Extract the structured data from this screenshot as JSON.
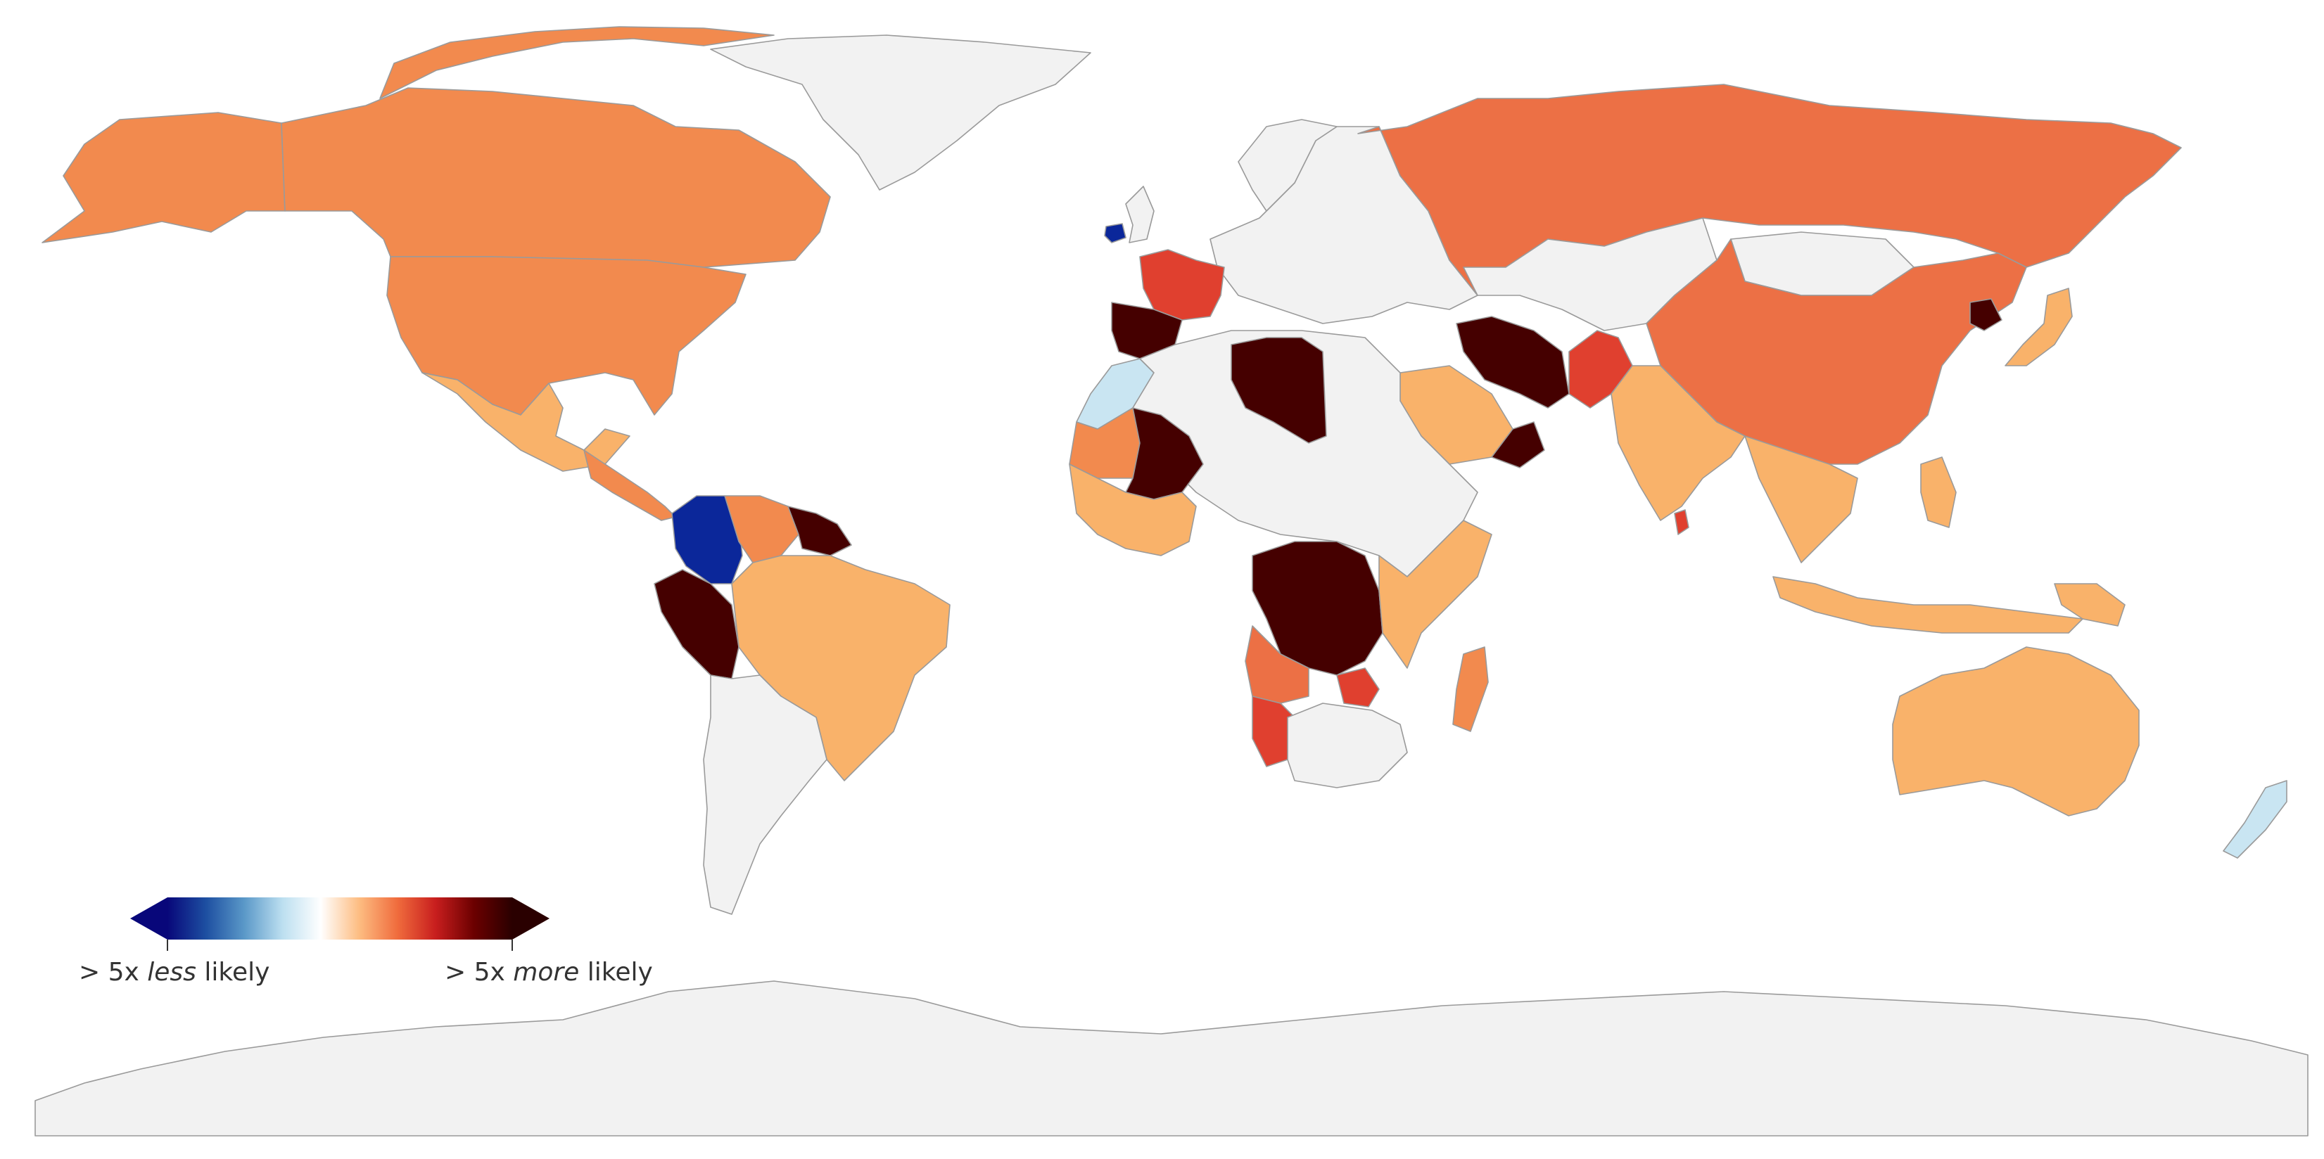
{
  "colors": {
    "background": "#ffffff",
    "no_data": "#f2f2f2",
    "border": "#9a9a9a",
    "deep_blue": "#0b279a",
    "light_blue": "#c9e5f2",
    "pale_orange": "#f9b26a",
    "orange": "#f28a4e",
    "orange_red": "#ec7045",
    "red": "#e0402f",
    "dark_red": "#c31d20",
    "maroon": "#450000"
  },
  "legend": {
    "scale_colors": [
      "#08077a",
      "#1d4fa1",
      "#5a98c8",
      "#bcdff0",
      "#ffffff",
      "#fdbd82",
      "#f06c3d",
      "#c81e1e",
      "#6b0000",
      "#2a0000"
    ],
    "low_prefix": "> 5x ",
    "low_emphasis": "less",
    "low_suffix": " likely",
    "high_prefix": "> 5x ",
    "high_emphasis": "more",
    "high_suffix": " likely"
  },
  "regions": [
    {
      "name": "canada",
      "fill": "orange"
    },
    {
      "name": "usa",
      "fill": "orange"
    },
    {
      "name": "alaska",
      "fill": "orange"
    },
    {
      "name": "greenland",
      "fill": "no_data"
    },
    {
      "name": "mexico",
      "fill": "pale_orange"
    },
    {
      "name": "central-america",
      "fill": "orange"
    },
    {
      "name": "colombia",
      "fill": "deep_blue"
    },
    {
      "name": "venezuela",
      "fill": "orange"
    },
    {
      "name": "guianas",
      "fill": "maroon"
    },
    {
      "name": "peru",
      "fill": "maroon"
    },
    {
      "name": "brazil",
      "fill": "pale_orange"
    },
    {
      "name": "southern-cone",
      "fill": "no_data"
    },
    {
      "name": "russia",
      "fill": "orange_red"
    },
    {
      "name": "europe",
      "fill": "no_data"
    },
    {
      "name": "ireland",
      "fill": "deep_blue"
    },
    {
      "name": "uk",
      "fill": "no_data"
    },
    {
      "name": "france",
      "fill": "red"
    },
    {
      "name": "spain",
      "fill": "maroon"
    },
    {
      "name": "morocco",
      "fill": "light_blue"
    },
    {
      "name": "north-africa",
      "fill": "no_data"
    },
    {
      "name": "libya",
      "fill": "maroon"
    },
    {
      "name": "mauritania",
      "fill": "orange"
    },
    {
      "name": "mali",
      "fill": "maroon"
    },
    {
      "name": "west-africa",
      "fill": "pale_orange"
    },
    {
      "name": "central-africa",
      "fill": "maroon"
    },
    {
      "name": "angola",
      "fill": "orange_red"
    },
    {
      "name": "namibia",
      "fill": "red"
    },
    {
      "name": "southern-africa",
      "fill": "no_data"
    },
    {
      "name": "zimbabwe",
      "fill": "red"
    },
    {
      "name": "east-africa",
      "fill": "pale_orange"
    },
    {
      "name": "madagascar",
      "fill": "orange"
    },
    {
      "name": "saudi-arabia",
      "fill": "pale_orange"
    },
    {
      "name": "oman",
      "fill": "maroon"
    },
    {
      "name": "iran",
      "fill": "maroon"
    },
    {
      "name": "pakistan",
      "fill": "red"
    },
    {
      "name": "central-asia",
      "fill": "no_data"
    },
    {
      "name": "mongolia",
      "fill": "no_data"
    },
    {
      "name": "china",
      "fill": "orange_red"
    },
    {
      "name": "north-korea",
      "fill": "maroon"
    },
    {
      "name": "japan",
      "fill": "pale_orange"
    },
    {
      "name": "india",
      "fill": "pale_orange"
    },
    {
      "name": "sri-lanka",
      "fill": "red"
    },
    {
      "name": "southeast-asia",
      "fill": "pale_orange"
    },
    {
      "name": "indonesia",
      "fill": "pale_orange"
    },
    {
      "name": "papua-new-guinea",
      "fill": "pale_orange"
    },
    {
      "name": "australia",
      "fill": "pale_orange"
    },
    {
      "name": "new-zealand",
      "fill": "light_blue"
    },
    {
      "name": "antarctica",
      "fill": "no_data"
    }
  ]
}
